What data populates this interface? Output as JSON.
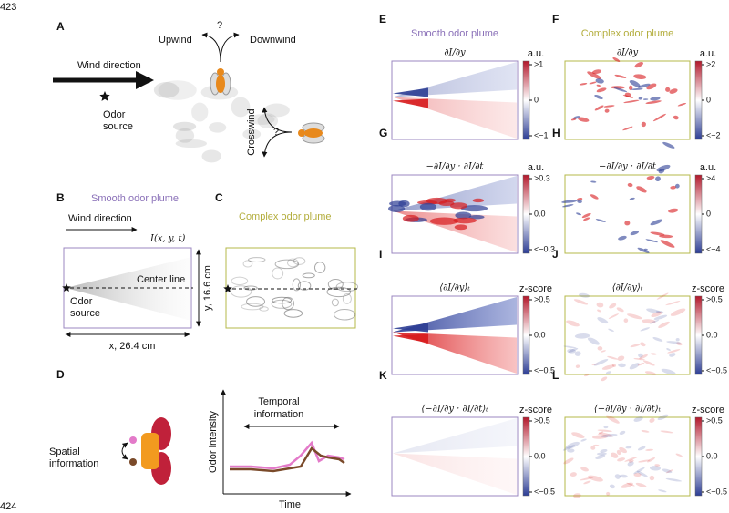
{
  "line_numbers": [
    "423",
    "424"
  ],
  "panel_a": {
    "letter": "A",
    "upwind": "Upwind",
    "question_top": "?",
    "downwind": "Downwind",
    "wind_direction": "Wind direction",
    "odor_source": [
      "Odor",
      "source"
    ],
    "crosswind": "Crosswind",
    "question_side": "?"
  },
  "panel_b": {
    "letter": "B",
    "header": "Smooth odor plume",
    "wind_direction": "Wind direction",
    "intensity": "I(x, y, t)",
    "center_line": "Center line",
    "odor_source": [
      "Odor",
      "source"
    ],
    "y_size": "y, 16.6 cm",
    "x_size": "x, 26.4 cm"
  },
  "panel_c": {
    "letter": "C",
    "header": "Complex odor plume"
  },
  "panel_d": {
    "letter": "D",
    "spatial": [
      "Spatial",
      "information"
    ],
    "temporal": [
      "Temporal",
      "information"
    ],
    "y_label": "Odor intensity",
    "x_label": "Time"
  },
  "heatmaps": [
    {
      "letter": "E",
      "header": "Smooth odor plume",
      "formula": "∂I/∂y",
      "unit": "a.u.",
      "ticks": [
        ">1",
        "0",
        "<−1"
      ]
    },
    {
      "letter": "F",
      "header": "Complex odor plume",
      "formula": "∂I/∂y",
      "unit": "a.u.",
      "ticks": [
        ">2",
        "0",
        "<−2"
      ]
    },
    {
      "letter": "G",
      "formula": "−∂I/∂y · ∂I/∂t",
      "unit": "a.u.",
      "ticks": [
        ">0.3",
        "0.0",
        "<−0.3"
      ]
    },
    {
      "letter": "H",
      "formula": "−∂I/∂y · ∂I/∂t",
      "unit": "a.u.",
      "ticks": [
        ">4",
        "0",
        "<−4"
      ]
    },
    {
      "letter": "I",
      "formula": "⟨∂I/∂y⟩ₜ",
      "unit": "z-score",
      "ticks": [
        ">0.5",
        "0.0",
        "<−0.5"
      ]
    },
    {
      "letter": "J",
      "formula": "⟨∂I/∂y⟩ₜ",
      "unit": "z-score",
      "ticks": [
        ">0.5",
        "0.0",
        "<−0.5"
      ]
    },
    {
      "letter": "K",
      "formula": "⟨−∂I/∂y · ∂I/∂t⟩ₜ",
      "unit": "z-score",
      "ticks": [
        ">0.5",
        "0.0",
        "<−0.5"
      ]
    },
    {
      "letter": "L",
      "formula": "⟨−∂I/∂y · ∂I/∂t⟩ₜ",
      "unit": "z-score",
      "ticks": [
        ">0.5",
        "0.0",
        "<−0.5"
      ]
    }
  ]
}
